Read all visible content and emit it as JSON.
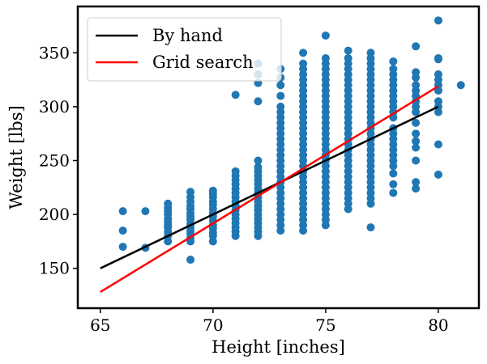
{
  "chart_data": {
    "type": "scatter",
    "title": "",
    "xlabel": "Height [inches]",
    "ylabel": "Weight [lbs]",
    "xlim": [
      64.0,
      81.8
    ],
    "ylim": [
      113,
      393
    ],
    "xticks": [
      65,
      70,
      75,
      80
    ],
    "yticks": [
      150,
      200,
      250,
      300,
      350
    ],
    "grid": false,
    "legend": {
      "position": "top-left",
      "entries": [
        {
          "label": "By hand",
          "color": "#000000"
        },
        {
          "label": "Grid search",
          "color": "#ff0000"
        }
      ]
    },
    "scatter_color": "#1f77b4",
    "points_by_height": [
      {
        "x": 66,
        "y": [
          170,
          185,
          203
        ]
      },
      {
        "x": 67,
        "y": [
          169,
          203
        ]
      },
      {
        "x": 68,
        "y": [
          175,
          180,
          184,
          188,
          190,
          193,
          196,
          200,
          203,
          206,
          210
        ]
      },
      {
        "x": 69,
        "y": [
          158,
          175,
          178,
          182,
          185,
          188,
          191,
          195,
          198,
          201,
          205,
          208,
          212,
          216,
          221
        ]
      },
      {
        "x": 70,
        "y": [
          175,
          180,
          183,
          187,
          190,
          194,
          198,
          201,
          205,
          209,
          212,
          216,
          219,
          222
        ]
      },
      {
        "x": 71,
        "y": [
          180,
          184,
          188,
          192,
          196,
          200,
          204,
          208,
          212,
          216,
          220,
          224,
          228,
          232,
          236,
          240,
          311
        ]
      },
      {
        "x": 72,
        "y": [
          180,
          184,
          188,
          192,
          196,
          200,
          204,
          208,
          212,
          216,
          220,
          224,
          228,
          232,
          236,
          240,
          244,
          250,
          305,
          322,
          330,
          340
        ]
      },
      {
        "x": 73,
        "y": [
          185,
          190,
          195,
          200,
          205,
          210,
          215,
          220,
          225,
          230,
          235,
          240,
          245,
          250,
          255,
          260,
          265,
          270,
          275,
          280,
          285,
          290,
          295,
          300,
          310,
          320,
          327,
          335
        ]
      },
      {
        "x": 74,
        "y": [
          185,
          190,
          195,
          200,
          205,
          210,
          215,
          220,
          225,
          230,
          235,
          240,
          245,
          250,
          255,
          260,
          265,
          270,
          275,
          280,
          285,
          290,
          295,
          300,
          305,
          310,
          315,
          320,
          325,
          330,
          335,
          340,
          350
        ]
      },
      {
        "x": 75,
        "y": [
          190,
          195,
          200,
          205,
          210,
          215,
          220,
          225,
          230,
          235,
          240,
          245,
          250,
          255,
          260,
          265,
          270,
          275,
          280,
          285,
          290,
          295,
          300,
          305,
          310,
          315,
          320,
          325,
          330,
          335,
          340,
          345,
          366
        ]
      },
      {
        "x": 76,
        "y": [
          205,
          210,
          215,
          220,
          225,
          230,
          235,
          240,
          245,
          250,
          255,
          260,
          265,
          270,
          275,
          280,
          285,
          290,
          295,
          300,
          305,
          310,
          315,
          320,
          325,
          330,
          335,
          340,
          345,
          352
        ]
      },
      {
        "x": 77,
        "y": [
          188,
          210,
          215,
          220,
          225,
          230,
          235,
          240,
          245,
          250,
          255,
          260,
          265,
          270,
          275,
          280,
          285,
          290,
          295,
          300,
          305,
          310,
          315,
          320,
          325,
          330,
          335,
          340,
          345,
          350
        ]
      },
      {
        "x": 78,
        "y": [
          220,
          228,
          238,
          245,
          250,
          255,
          260,
          265,
          270,
          275,
          280,
          290,
          295,
          300,
          305,
          310,
          315,
          320,
          325,
          330,
          335,
          342
        ]
      },
      {
        "x": 79,
        "y": [
          224,
          230,
          250,
          262,
          268,
          275,
          285,
          295,
          300,
          305,
          310,
          315,
          320,
          327,
          332,
          356
        ]
      },
      {
        "x": 80,
        "y": [
          237,
          265,
          295,
          300,
          305,
          315,
          320,
          325,
          330,
          344,
          345,
          380
        ]
      },
      {
        "x": 81,
        "y": [
          320
        ]
      }
    ],
    "series": [
      {
        "name": "By hand",
        "type": "line",
        "color": "#000000",
        "x": [
          65,
          80
        ],
        "y": [
          150,
          300
        ]
      },
      {
        "name": "Grid search",
        "type": "line",
        "color": "#ff0000",
        "x": [
          65,
          80
        ],
        "y": [
          128,
          319
        ]
      }
    ]
  }
}
